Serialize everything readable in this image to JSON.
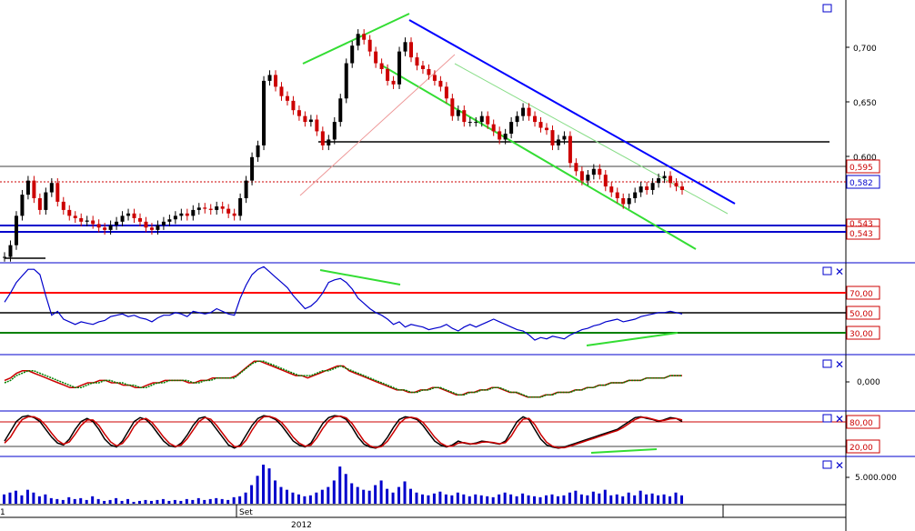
{
  "chart_data": [
    {
      "type": "candlestick",
      "panel": "price",
      "y_axis_ticks": [
        "0,700",
        "0,650",
        "0,600"
      ],
      "price_labels": [
        {
          "text": "0,595",
          "color": "#cc0000"
        },
        {
          "text": "0,582",
          "color": "#0000cc"
        },
        {
          "text": "0,543",
          "color": "#cc0000"
        },
        {
          "text": "0,543",
          "color": "#cc0000"
        }
      ],
      "ylim": [
        0.52,
        0.74
      ],
      "close_series": [
        0.525,
        0.535,
        0.56,
        0.578,
        0.59,
        0.575,
        0.565,
        0.58,
        0.588,
        0.572,
        0.565,
        0.56,
        0.558,
        0.555,
        0.556,
        0.553,
        0.55,
        0.548,
        0.552,
        0.555,
        0.56,
        0.562,
        0.558,
        0.555,
        0.55,
        0.548,
        0.552,
        0.555,
        0.557,
        0.56,
        0.562,
        0.56,
        0.565,
        0.567,
        0.566,
        0.565,
        0.568,
        0.566,
        0.562,
        0.56,
        0.575,
        0.59,
        0.61,
        0.62,
        0.675,
        0.68,
        0.67,
        0.662,
        0.658,
        0.65,
        0.645,
        0.64,
        0.642,
        0.632,
        0.62,
        0.625,
        0.64,
        0.66,
        0.69,
        0.705,
        0.715,
        0.71,
        0.7,
        0.69,
        0.685,
        0.675,
        0.672,
        0.7,
        0.708,
        0.695,
        0.688,
        0.685,
        0.68,
        0.675,
        0.67,
        0.66,
        0.645,
        0.65,
        0.64,
        0.64,
        0.64,
        0.645,
        0.638,
        0.632,
        0.625,
        0.63,
        0.64,
        0.645,
        0.652,
        0.645,
        0.64,
        0.635,
        0.633,
        0.62,
        0.625,
        0.628,
        0.605,
        0.598,
        0.59,
        0.595,
        0.6,
        0.595,
        0.585,
        0.58,
        0.575,
        0.57,
        0.575,
        0.58,
        0.585,
        0.582,
        0.588,
        0.592,
        0.594,
        0.588,
        0.585,
        0.582
      ],
      "series_colors": {
        "up": "#000000",
        "down": "#cc0000"
      }
    },
    {
      "type": "line",
      "panel": "rsi",
      "reference_labels": [
        {
          "text": "70,00",
          "color": "#cc0000"
        },
        {
          "text": "50,00",
          "color": "#cc0000"
        },
        {
          "text": "30,00",
          "color": "#cc0000"
        }
      ],
      "ylim": [
        15,
        85
      ],
      "values": [
        55,
        62,
        70,
        75,
        80,
        80,
        76,
        60,
        45,
        48,
        42,
        40,
        38,
        40,
        39,
        38,
        40,
        41,
        44,
        45,
        46,
        44,
        45,
        43,
        42,
        40,
        43,
        45,
        45,
        47,
        46,
        44,
        48,
        47,
        46,
        47,
        50,
        48,
        46,
        45,
        58,
        68,
        76,
        80,
        82,
        78,
        74,
        70,
        66,
        60,
        55,
        50,
        52,
        56,
        62,
        70,
        72,
        73,
        70,
        65,
        58,
        54,
        50,
        47,
        45,
        42,
        38,
        40,
        36,
        38,
        37,
        36,
        34,
        35,
        36,
        38,
        35,
        33,
        36,
        38,
        36,
        38,
        40,
        42,
        40,
        38,
        36,
        34,
        33,
        30,
        26,
        28,
        27,
        29,
        28,
        27,
        30,
        32,
        34,
        35,
        37,
        38,
        40,
        41,
        42,
        40,
        41,
        42,
        44,
        45,
        46,
        47,
        47,
        48,
        47,
        46
      ],
      "line_color": "#0000cc"
    },
    {
      "type": "line",
      "panel": "macd",
      "y_axis_ticks": [
        "0,000"
      ],
      "series": [
        {
          "color": "#cc0000",
          "values": [
            2,
            3,
            5,
            6,
            6,
            5,
            4,
            3,
            2,
            1,
            0,
            -1,
            -1,
            0,
            1,
            1,
            2,
            2,
            1,
            1,
            0,
            0,
            -1,
            -1,
            0,
            1,
            1,
            2,
            2,
            2,
            2,
            1,
            1,
            2,
            2,
            3,
            3,
            3,
            3,
            4,
            6,
            8,
            10,
            10,
            9,
            8,
            7,
            6,
            5,
            4,
            4,
            3,
            4,
            5,
            6,
            7,
            8,
            8,
            6,
            5,
            4,
            3,
            2,
            1,
            0,
            -1,
            -2,
            -2,
            -3,
            -3,
            -2,
            -2,
            -1,
            -1,
            -2,
            -3,
            -4,
            -4,
            -3,
            -3,
            -2,
            -2,
            -1,
            -1,
            -2,
            -3,
            -3,
            -4,
            -5,
            -5,
            -5,
            -4,
            -4,
            -3,
            -3,
            -3,
            -2,
            -2,
            -1,
            -1,
            0,
            0,
            1,
            1,
            1,
            2,
            2,
            2,
            3,
            3,
            3,
            3,
            4,
            4,
            4
          ]
        },
        {
          "color": "#008000",
          "values": [
            1,
            2,
            4,
            5,
            6,
            6,
            5,
            4,
            3,
            2,
            1,
            0,
            -1,
            -1,
            0,
            1,
            1,
            2,
            2,
            1,
            1,
            0,
            0,
            -1,
            -1,
            0,
            1,
            1,
            2,
            2,
            2,
            2,
            1,
            1,
            2,
            2,
            3,
            3,
            3,
            3,
            5,
            7,
            9,
            10,
            10,
            9,
            8,
            7,
            6,
            5,
            4,
            4,
            4,
            5,
            6,
            6,
            7,
            8,
            7,
            6,
            5,
            4,
            3,
            2,
            1,
            0,
            -1,
            -2,
            -2,
            -3,
            -3,
            -2,
            -2,
            -1,
            -1,
            -2,
            -3,
            -4,
            -4,
            -3,
            -3,
            -2,
            -2,
            -1,
            -1,
            -2,
            -3,
            -3,
            -4,
            -5,
            -5,
            -5,
            -4,
            -4,
            -3,
            -3,
            -3,
            -2,
            -2,
            -1,
            -1,
            0,
            0,
            1,
            1,
            1,
            2,
            2,
            2,
            3,
            3,
            3,
            3,
            4,
            4,
            4
          ]
        }
      ]
    },
    {
      "type": "line",
      "panel": "stochastic",
      "reference_labels": [
        {
          "text": "80,00",
          "color": "#cc0000"
        },
        {
          "text": "20,00",
          "color": "#cc0000"
        }
      ],
      "ylim": [
        0,
        100
      ],
      "series": [
        {
          "color": "#000000",
          "values": [
            30,
            55,
            80,
            92,
            95,
            90,
            80,
            60,
            40,
            25,
            20,
            35,
            60,
            80,
            88,
            80,
            60,
            35,
            20,
            15,
            30,
            55,
            80,
            90,
            85,
            70,
            50,
            30,
            18,
            15,
            25,
            45,
            70,
            88,
            92,
            80,
            60,
            40,
            20,
            12,
            20,
            45,
            70,
            88,
            95,
            92,
            85,
            70,
            50,
            30,
            20,
            15,
            25,
            50,
            75,
            90,
            95,
            93,
            85,
            65,
            40,
            22,
            15,
            12,
            20,
            40,
            65,
            85,
            92,
            90,
            85,
            70,
            50,
            30,
            20,
            15,
            20,
            30,
            25,
            22,
            25,
            30,
            28,
            25,
            22,
            30,
            55,
            80,
            92,
            85,
            60,
            35,
            20,
            15,
            12,
            15,
            20,
            25,
            30,
            35,
            40,
            45,
            50,
            55,
            60,
            70,
            80,
            90,
            92,
            88,
            85,
            80,
            85,
            90,
            88,
            80
          ]
        },
        {
          "color": "#cc0000",
          "values": [
            25,
            40,
            65,
            85,
            92,
            92,
            85,
            70,
            50,
            32,
            22,
            28,
            48,
            70,
            84,
            84,
            70,
            48,
            28,
            18,
            24,
            42,
            68,
            84,
            88,
            78,
            60,
            40,
            24,
            16,
            20,
            36,
            58,
            80,
            90,
            86,
            70,
            50,
            30,
            16,
            16,
            32,
            58,
            80,
            92,
            93,
            88,
            78,
            60,
            40,
            25,
            17,
            20,
            38,
            62,
            82,
            92,
            94,
            89,
            75,
            52,
            30,
            18,
            13,
            16,
            30,
            52,
            75,
            88,
            91,
            88,
            78,
            60,
            40,
            25,
            17,
            17,
            25,
            26,
            23,
            23,
            27,
            28,
            26,
            23,
            26,
            43,
            68,
            86,
            88,
            72,
            47,
            27,
            17,
            13,
            13,
            17,
            22,
            27,
            32,
            37,
            42,
            47,
            52,
            57,
            65,
            75,
            85,
            91,
            90,
            86,
            82,
            83,
            87,
            88,
            84
          ]
        }
      ]
    },
    {
      "type": "bar",
      "panel": "volume",
      "y_axis_ticks": [
        "5.000.000"
      ],
      "bar_color": "#0000cc",
      "values": [
        1.0,
        1.2,
        1.4,
        0.9,
        1.5,
        1.2,
        0.8,
        1.0,
        0.6,
        0.5,
        0.4,
        0.7,
        0.5,
        0.6,
        0.4,
        0.8,
        0.5,
        0.3,
        0.4,
        0.6,
        0.3,
        0.5,
        0.2,
        0.3,
        0.4,
        0.3,
        0.4,
        0.5,
        0.3,
        0.4,
        0.3,
        0.5,
        0.4,
        0.6,
        0.4,
        0.5,
        0.6,
        0.5,
        0.4,
        0.7,
        0.8,
        1.2,
        2.0,
        3.0,
        4.2,
        3.8,
        2.5,
        1.8,
        1.5,
        1.2,
        1.0,
        0.8,
        0.9,
        1.2,
        1.5,
        1.8,
        2.5,
        4.0,
        3.2,
        2.2,
        1.8,
        1.5,
        1.4,
        2.0,
        2.5,
        1.6,
        1.2,
        1.8,
        2.4,
        1.6,
        1.2,
        1.0,
        0.9,
        1.1,
        1.3,
        1.0,
        0.9,
        1.2,
        1.0,
        0.8,
        1.0,
        0.9,
        0.8,
        0.7,
        1.0,
        1.2,
        1.0,
        0.8,
        1.1,
        0.9,
        0.8,
        0.7,
        0.9,
        1.0,
        0.8,
        0.9,
        1.2,
        1.4,
        1.0,
        0.9,
        1.3,
        1.1,
        1.5,
        0.9,
        1.0,
        0.8,
        1.2,
        0.9,
        1.4,
        1.0,
        1.1,
        0.9,
        1.0,
        0.8,
        1.2,
        0.9
      ]
    }
  ],
  "x_axis": {
    "labels": [
      {
        "text": "1"
      },
      {
        "text": "Set"
      }
    ],
    "year_label": "2012"
  },
  "panel_controls": {
    "maximize_icon": "square-icon",
    "close_icon": "x-icon",
    "icon_color": "#0000cc"
  }
}
